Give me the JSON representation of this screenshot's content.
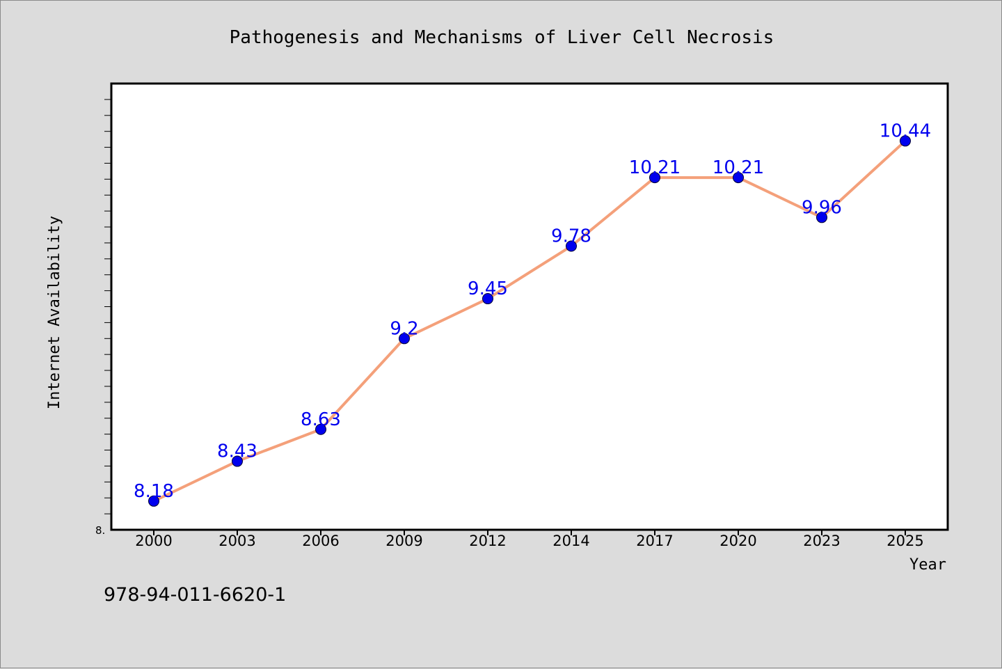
{
  "chart_data": {
    "type": "line",
    "title": "Pathogenesis and Mechanisms of Liver Cell Necrosis",
    "xlabel": "Year",
    "ylabel": "Internet Availability",
    "categories": [
      "2000",
      "2003",
      "2006",
      "2009",
      "2012",
      "2014",
      "2017",
      "2020",
      "2023",
      "2025"
    ],
    "series": [
      {
        "values": [
          8.18,
          8.43,
          8.63,
          9.2,
          9.45,
          9.78,
          10.21,
          10.21,
          9.96,
          10.44
        ],
        "labels": [
          "8.18",
          "8.43",
          "8.63",
          "9.2",
          "9.45",
          "9.78",
          "10.21",
          "10.21",
          "9.96",
          "10.44"
        ]
      }
    ],
    "ylim": [
      8.0,
      10.8
    ],
    "y_min_tick_label": "8.",
    "grid": false,
    "legend": "none",
    "colors": {
      "line": "#f4a07a",
      "marker": "#0000ee",
      "data_label": "#0000ee"
    }
  },
  "footer": {
    "isbn": "978-94-011-6620-1"
  }
}
